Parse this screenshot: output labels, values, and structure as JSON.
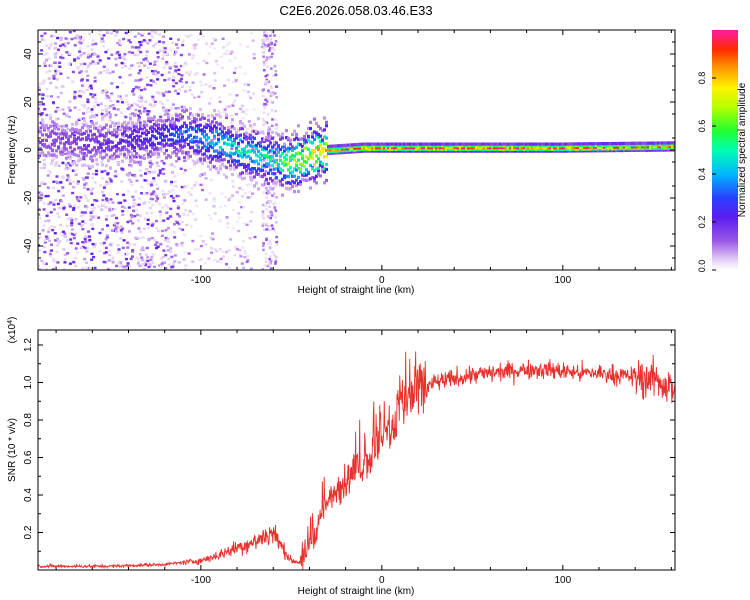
{
  "figure_title": "C2E6.2026.058.03.46.E33",
  "chart_data": [
    {
      "type": "heatmap",
      "title": "C2E6.2026.058.03.46.E33",
      "xlabel": "Height of straight line (km)",
      "ylabel": "Frequency (Hz)",
      "xlim": [
        -190,
        162
      ],
      "ylim": [
        -50,
        50
      ],
      "xticks": [
        -100,
        0,
        100
      ],
      "yticks": [
        -40,
        -20,
        0,
        20,
        40
      ],
      "colorbar": {
        "label": "Normalized spectral amplitude",
        "range": [
          0.0,
          1.0
        ],
        "ticks": [
          0.0,
          0.2,
          0.4,
          0.6,
          0.8
        ],
        "tick_labels": [
          "0.0",
          "0.2",
          "0.4",
          "0.6",
          "0.8"
        ]
      },
      "ridge": {
        "x": [
          -190,
          -150,
          -120,
          -110,
          -100,
          -90,
          -80,
          -70,
          -60,
          -55,
          -50,
          -45,
          -40,
          -35,
          -30,
          -20,
          -10,
          0,
          10,
          50,
          100,
          162
        ],
        "y": [
          4,
          3,
          6,
          7,
          5,
          3,
          0,
          -2,
          -4,
          -5,
          -5,
          -4,
          -2,
          -1,
          0,
          0.5,
          1,
          1,
          1,
          1,
          1,
          1.5
        ],
        "amplitude": [
          0.15,
          0.2,
          0.3,
          0.35,
          0.4,
          0.45,
          0.5,
          0.5,
          0.55,
          0.6,
          0.65,
          0.7,
          0.75,
          0.8,
          0.85,
          0.9,
          0.92,
          0.94,
          0.95,
          0.96,
          0.95,
          0.9
        ]
      }
    },
    {
      "type": "line",
      "title": "",
      "xlabel": "Height of straight line (km)",
      "ylabel": "SNR (10 * v/v)",
      "y_multiplier": "(x10^4)",
      "xlim": [
        -190,
        162
      ],
      "ylim": [
        0,
        1.28
      ],
      "xticks": [
        -100,
        0,
        100
      ],
      "yticks": [
        0.2,
        0.4,
        0.6,
        0.8,
        1.0,
        1.2
      ],
      "ytick_labels": [
        "0.2",
        "0.4",
        "0.6",
        "0.8",
        "1.0",
        "1.2"
      ],
      "series": [
        {
          "name": "SNR",
          "color": "#e8302c",
          "envelope_x": [
            -190,
            -150,
            -120,
            -100,
            -90,
            -80,
            -70,
            -65,
            -60,
            -55,
            -50,
            -45,
            -40,
            -35,
            -30,
            -25,
            -20,
            -15,
            -10,
            -5,
            0,
            5,
            10,
            15,
            20,
            25,
            30,
            40,
            50,
            60,
            70,
            80,
            90,
            100,
            110,
            120,
            130,
            140,
            150,
            155,
            160,
            162
          ],
          "envelope_y": [
            0.02,
            0.02,
            0.03,
            0.05,
            0.08,
            0.12,
            0.15,
            0.18,
            0.2,
            0.12,
            0.05,
            0.04,
            0.12,
            0.26,
            0.36,
            0.42,
            0.47,
            0.52,
            0.56,
            0.62,
            0.68,
            0.76,
            0.84,
            0.9,
            0.95,
            0.98,
            1.0,
            1.02,
            1.04,
            1.05,
            1.06,
            1.07,
            1.07,
            1.06,
            1.05,
            1.05,
            1.04,
            1.03,
            1.02,
            1.0,
            0.97,
            0.95
          ]
        }
      ]
    }
  ]
}
